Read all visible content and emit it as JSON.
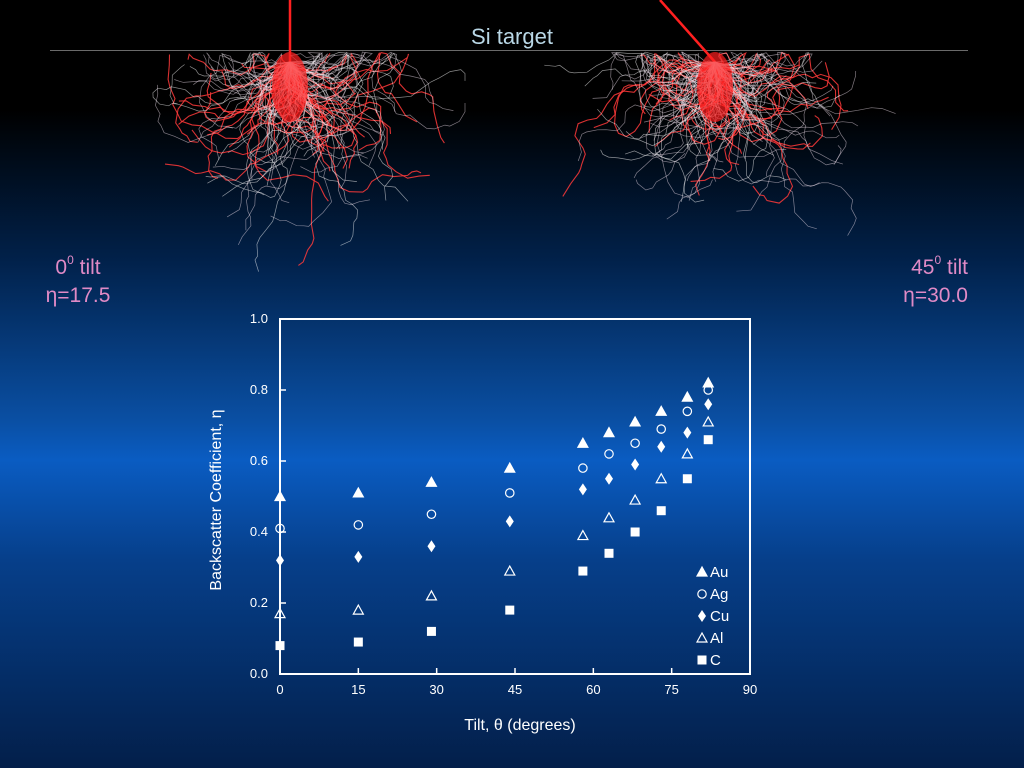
{
  "header": {
    "title": "Si target"
  },
  "labels": {
    "left": {
      "tilt_value": "0",
      "tilt_exp": "0",
      "tilt_word": "tilt",
      "eta": "η=17.5"
    },
    "right": {
      "tilt_value": "45",
      "tilt_exp": "0",
      "tilt_word": "tilt",
      "eta": "η=30.0"
    }
  },
  "colors": {
    "beam": "#ff2020",
    "trajectory": "#ffffff",
    "title": "#b9d7e6",
    "tilt_label": "#e08ac6"
  },
  "chart_data": {
    "type": "scatter",
    "title": "",
    "xlabel": "Tilt, θ (degrees)",
    "ylabel": "Backscatter Coefficient, η",
    "xlim": [
      0,
      90
    ],
    "ylim": [
      0,
      1.0
    ],
    "xticks": [
      0,
      15,
      30,
      45,
      60,
      75,
      90
    ],
    "yticks": [
      "0.0",
      "0.2",
      "0.4",
      "0.6",
      "0.8",
      "1.0"
    ],
    "legend_position": "bottom-right",
    "series": [
      {
        "name": "Au",
        "marker": "triangle-filled",
        "x": [
          0,
          15,
          29,
          44,
          58,
          63,
          68,
          73,
          78,
          82
        ],
        "y": [
          0.5,
          0.51,
          0.54,
          0.58,
          0.65,
          0.68,
          0.71,
          0.74,
          0.78,
          0.82
        ]
      },
      {
        "name": "Ag",
        "marker": "circle-open",
        "x": [
          0,
          15,
          29,
          44,
          58,
          63,
          68,
          73,
          78,
          82
        ],
        "y": [
          0.41,
          0.42,
          0.45,
          0.51,
          0.58,
          0.62,
          0.65,
          0.69,
          0.74,
          0.8
        ]
      },
      {
        "name": "Cu",
        "marker": "diamond-filled",
        "x": [
          0,
          15,
          29,
          44,
          58,
          63,
          68,
          73,
          78,
          82
        ],
        "y": [
          0.32,
          0.33,
          0.36,
          0.43,
          0.52,
          0.55,
          0.59,
          0.64,
          0.68,
          0.76
        ]
      },
      {
        "name": "Al",
        "marker": "triangle-open",
        "x": [
          0,
          15,
          29,
          44,
          58,
          63,
          68,
          73,
          78,
          82
        ],
        "y": [
          0.17,
          0.18,
          0.22,
          0.29,
          0.39,
          0.44,
          0.49,
          0.55,
          0.62,
          0.71
        ]
      },
      {
        "name": "C",
        "marker": "square-filled",
        "x": [
          0,
          15,
          29,
          44,
          58,
          63,
          68,
          73,
          78,
          82
        ],
        "y": [
          0.08,
          0.09,
          0.12,
          0.18,
          0.29,
          0.34,
          0.4,
          0.46,
          0.55,
          0.66
        ]
      }
    ]
  }
}
